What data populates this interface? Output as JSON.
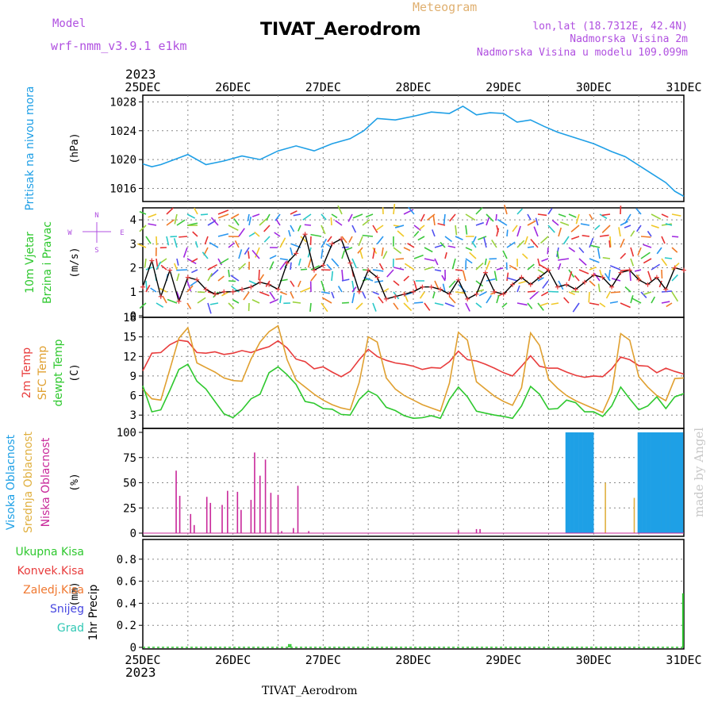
{
  "header": {
    "model_label": "Model",
    "model_name": "wrf-nmm_v3.9.1 e1km",
    "title": "TIVAT_Aerodrom",
    "subtitle": "Meteogram",
    "lonlat": "lon,lat (18.7312E, 42.4N)",
    "elev_real": "Nadmorska Visina 2m",
    "elev_model": "Nadmorska Visina u modelu 109.099m",
    "year_top": "2023",
    "year_bottom": "2023",
    "footer": "TIVAT_Aerodrom",
    "credit": "made by Angel"
  },
  "colors": {
    "pressure": "#1e9fe6",
    "temp2m": "#e83c3c",
    "sfctemp": "#e0a030",
    "dewpt": "#2ec82e",
    "visoka": "#1ea0e6",
    "srednja": "#e0b040",
    "niska": "#c8289a",
    "wind_line": "#000000",
    "wind_marker": "#e84040",
    "label_purple": "#b050e0",
    "credit": "#c8c8c8"
  },
  "chart_data": [
    {
      "type": "line",
      "panel": "pressure",
      "title": "",
      "ylabel_lines": [
        "Pritisak na nivou mora"
      ],
      "unit": "(hPa)",
      "x_ticks": [
        "25DEC",
        "26DEC",
        "27DEC",
        "28DEC",
        "29DEC",
        "30DEC",
        "31DEC"
      ],
      "ylim": [
        1014.4,
        1028.6
      ],
      "yticks": [
        "1016",
        "1020",
        "1024",
        "1028"
      ],
      "grid": true,
      "series": [
        {
          "color_key": "pressure",
          "x": [
            0,
            0.1,
            0.2,
            0.35,
            0.5,
            0.7,
            0.9,
            1.1,
            1.3,
            1.5,
            1.7,
            1.9,
            2.1,
            2.3,
            2.45,
            2.6,
            2.8,
            3.0,
            3.2,
            3.4,
            3.55,
            3.7,
            3.85,
            4.0,
            4.15,
            4.3,
            4.45,
            4.6,
            4.8,
            5.0,
            5.2,
            5.35,
            5.5,
            5.65,
            5.8,
            5.9,
            6.0
          ],
          "y": [
            1019.4,
            1019.0,
            1019.3,
            1020.0,
            1020.7,
            1019.3,
            1019.8,
            1020.5,
            1020.0,
            1021.2,
            1021.9,
            1021.2,
            1022.2,
            1022.9,
            1024.0,
            1025.7,
            1025.5,
            1026.0,
            1026.6,
            1026.4,
            1027.4,
            1026.2,
            1026.5,
            1026.4,
            1025.2,
            1025.5,
            1024.6,
            1023.8,
            1023.0,
            1022.2,
            1021.1,
            1020.4,
            1019.2,
            1018.0,
            1016.8,
            1015.6,
            1014.9
          ]
        }
      ]
    },
    {
      "type": "line",
      "panel": "wind",
      "title": "",
      "ylabel_lines": [
        "10m Vjetar",
        "Brzina i Pravac"
      ],
      "unit": "(m/s)",
      "compass": [
        "N",
        "W",
        "E",
        "S"
      ],
      "ylim": [
        0,
        4.5
      ],
      "yticks": [
        "0",
        "1",
        "2",
        "3",
        "4"
      ],
      "grid": true,
      "series": [
        {
          "color_key": "wind_line",
          "x": [
            0,
            0.1,
            0.2,
            0.3,
            0.4,
            0.5,
            0.6,
            0.7,
            0.8,
            0.9,
            1.0,
            1.1,
            1.2,
            1.3,
            1.4,
            1.5,
            1.6,
            1.7,
            1.8,
            1.9,
            2.0,
            2.1,
            2.2,
            2.3,
            2.4,
            2.5,
            2.6,
            2.7,
            2.8,
            2.9,
            3.0,
            3.1,
            3.2,
            3.3,
            3.4,
            3.5,
            3.6,
            3.7,
            3.8,
            3.9,
            4.0,
            4.1,
            4.2,
            4.3,
            4.4,
            4.5,
            4.6,
            4.7,
            4.8,
            4.9,
            5.0,
            5.1,
            5.2,
            5.3,
            5.4,
            5.5,
            5.6,
            5.7,
            5.8,
            5.9,
            6.0
          ],
          "y": [
            1.2,
            2.3,
            0.8,
            1.9,
            0.6,
            1.6,
            1.5,
            1.1,
            0.9,
            1.0,
            1.0,
            1.1,
            1.2,
            1.4,
            1.3,
            1.1,
            2.2,
            2.6,
            3.4,
            1.9,
            2.1,
            3.0,
            3.2,
            2.2,
            1.0,
            1.9,
            1.6,
            0.7,
            0.8,
            0.9,
            1.0,
            1.2,
            1.2,
            1.1,
            0.9,
            1.5,
            0.7,
            0.9,
            1.8,
            1.0,
            0.9,
            1.3,
            1.6,
            1.3,
            1.6,
            1.9,
            1.2,
            1.3,
            1.1,
            1.4,
            1.7,
            1.6,
            1.2,
            1.8,
            1.9,
            1.5,
            1.3,
            1.6,
            1.1,
            2.0,
            1.9
          ]
        }
      ]
    },
    {
      "type": "line",
      "panel": "temperature",
      "title": "",
      "ylabel_lines": [
        "2m Temp",
        "SFC Temp",
        "dewpt Temp"
      ],
      "unit": "(C)",
      "ylim": [
        1.2,
        18
      ],
      "yticks": [
        "3",
        "6",
        "9",
        "12",
        "15",
        "18"
      ],
      "grid": true,
      "series": [
        {
          "name": "2m Temp",
          "color_key": "temp2m",
          "x": [
            0,
            0.1,
            0.2,
            0.3,
            0.4,
            0.5,
            0.6,
            0.7,
            0.8,
            0.9,
            1.0,
            1.1,
            1.2,
            1.3,
            1.4,
            1.5,
            1.6,
            1.7,
            1.8,
            1.9,
            2.0,
            2.1,
            2.2,
            2.3,
            2.4,
            2.5,
            2.6,
            2.7,
            2.8,
            2.9,
            3.0,
            3.1,
            3.2,
            3.3,
            3.4,
            3.5,
            3.6,
            3.7,
            3.8,
            3.9,
            4.0,
            4.1,
            4.2,
            4.3,
            4.4,
            4.5,
            4.6,
            4.7,
            4.8,
            4.9,
            5.0,
            5.1,
            5.2,
            5.3,
            5.4,
            5.5,
            5.6,
            5.7,
            5.8,
            5.9,
            6.0
          ],
          "y": [
            9.8,
            12.5,
            12.6,
            13.8,
            14.5,
            14.3,
            12.6,
            12.5,
            12.7,
            12.3,
            12.5,
            12.9,
            12.6,
            13.1,
            13.5,
            14.4,
            13.3,
            11.6,
            11.2,
            10.1,
            10.4,
            9.6,
            8.9,
            9.7,
            11.5,
            13.1,
            12.0,
            11.4,
            11.0,
            10.8,
            10.5,
            10.0,
            10.3,
            10.2,
            11.2,
            12.8,
            11.5,
            11.3,
            10.8,
            10.2,
            9.5,
            9.0,
            10.5,
            12.1,
            10.5,
            10.2,
            10.2,
            9.6,
            9.1,
            8.8,
            9.0,
            8.9,
            10.1,
            11.9,
            11.5,
            10.6,
            10.5,
            9.5,
            10.2,
            9.7,
            9.3
          ]
        },
        {
          "name": "SFC Temp",
          "color_key": "sfctemp",
          "x": [
            0,
            0.1,
            0.2,
            0.3,
            0.4,
            0.5,
            0.6,
            0.7,
            0.8,
            0.9,
            1.0,
            1.1,
            1.2,
            1.3,
            1.4,
            1.5,
            1.6,
            1.7,
            1.8,
            1.9,
            2.0,
            2.1,
            2.2,
            2.3,
            2.4,
            2.5,
            2.6,
            2.7,
            2.8,
            2.9,
            3.0,
            3.1,
            3.2,
            3.3,
            3.4,
            3.5,
            3.6,
            3.7,
            3.8,
            3.9,
            4.0,
            4.1,
            4.2,
            4.3,
            4.4,
            4.5,
            4.6,
            4.7,
            4.8,
            4.9,
            5.0,
            5.1,
            5.2,
            5.3,
            5.4,
            5.5,
            5.6,
            5.7,
            5.8,
            5.9,
            6.0
          ],
          "y": [
            7.0,
            5.5,
            5.3,
            10.0,
            14.8,
            16.4,
            11.0,
            10.3,
            9.6,
            8.7,
            8.3,
            8.2,
            11.6,
            14.2,
            15.8,
            16.7,
            11.5,
            8.4,
            7.3,
            6.2,
            5.3,
            4.6,
            4.1,
            3.8,
            8.0,
            15.0,
            14.2,
            8.7,
            7.0,
            6.0,
            5.3,
            4.6,
            4.1,
            3.6,
            7.9,
            15.7,
            14.5,
            8.1,
            7.0,
            5.9,
            5.1,
            4.5,
            7.2,
            15.6,
            13.7,
            8.5,
            7.1,
            6.0,
            5.2,
            4.6,
            4.0,
            3.4,
            6.5,
            15.5,
            14.5,
            8.9,
            7.3,
            6.0,
            5.2,
            8.6,
            8.7
          ]
        },
        {
          "name": "dewpt Temp",
          "color_key": "dewpt",
          "x": [
            0,
            0.1,
            0.2,
            0.3,
            0.4,
            0.5,
            0.6,
            0.7,
            0.8,
            0.9,
            1.0,
            1.1,
            1.2,
            1.3,
            1.4,
            1.5,
            1.6,
            1.7,
            1.8,
            1.9,
            2.0,
            2.1,
            2.2,
            2.3,
            2.4,
            2.5,
            2.6,
            2.7,
            2.8,
            2.9,
            3.0,
            3.1,
            3.2,
            3.3,
            3.4,
            3.5,
            3.6,
            3.7,
            3.8,
            3.9,
            4.0,
            4.1,
            4.2,
            4.3,
            4.4,
            4.5,
            4.6,
            4.7,
            4.8,
            4.9,
            5.0,
            5.1,
            5.2,
            5.3,
            5.4,
            5.5,
            5.6,
            5.7,
            5.8,
            5.9,
            6.0
          ],
          "y": [
            7.5,
            3.5,
            3.8,
            6.8,
            10.0,
            10.8,
            8.2,
            7.0,
            5.1,
            3.2,
            2.6,
            3.8,
            5.5,
            6.2,
            9.5,
            10.4,
            9.2,
            7.7,
            5.1,
            4.8,
            4.0,
            3.9,
            3.1,
            3.0,
            5.4,
            6.7,
            6.0,
            4.2,
            3.7,
            2.9,
            2.5,
            2.6,
            2.9,
            2.5,
            5.4,
            7.3,
            5.8,
            3.6,
            3.3,
            3.0,
            2.8,
            2.5,
            4.4,
            7.4,
            6.2,
            3.9,
            4.0,
            5.3,
            4.9,
            3.5,
            3.5,
            2.8,
            4.4,
            7.3,
            5.5,
            3.8,
            4.4,
            5.8,
            4.0,
            5.8,
            6.3
          ]
        }
      ]
    },
    {
      "type": "bar",
      "panel": "clouds",
      "title": "",
      "ylabel_lines": [
        "Visoka Oblacnost",
        "Srednja Oblacnost",
        "Niska Oblacnost"
      ],
      "unit": "(%)",
      "ylim": [
        0,
        100
      ],
      "yticks": [
        "0",
        "25",
        "50",
        "75",
        "100"
      ],
      "grid": true,
      "series": [
        {
          "name": "Niska Oblacnost",
          "color_key": "niska",
          "x": [
            0.37,
            0.41,
            0.53,
            0.57,
            0.71,
            0.75,
            0.88,
            0.94,
            1.05,
            1.09,
            1.2,
            1.24,
            1.3,
            1.36,
            1.42,
            1.5,
            1.54,
            1.67,
            1.72,
            1.84,
            3.5,
            3.7,
            3.74,
            4.99
          ],
          "y": [
            62,
            37,
            19,
            8,
            36,
            30,
            28,
            42,
            41,
            23,
            33,
            80,
            57,
            73,
            40,
            38,
            2,
            5,
            47,
            2,
            3,
            4,
            4,
            3
          ]
        },
        {
          "name": "Srednja Oblacnost",
          "color_key": "srednja",
          "x": [
            5.13,
            5.45,
            5.55,
            5.6,
            5.65,
            5.7,
            5.75,
            5.8,
            5.85,
            5.9,
            5.95
          ],
          "y": [
            50,
            35,
            98,
            99,
            98,
            99,
            98,
            99,
            99,
            98,
            99
          ]
        },
        {
          "name": "Visoka Oblacnost",
          "color_key": "visoka",
          "x_start": 4.7,
          "x_end": 5.0,
          "x_start2": 5.5,
          "x_end2": 6.0,
          "y": 100
        }
      ]
    },
    {
      "type": "bar",
      "panel": "precip",
      "title": "",
      "ylabel_lines": [
        "1hr Precip"
      ],
      "unit": "(mm)",
      "legend": [
        "Ukupna Kisa",
        "Konvek.Kisa",
        "Zaledj.Kisa",
        "Snijeg",
        "Grad"
      ],
      "legend_colors": [
        "#2ec82e",
        "#e83c3c",
        "#f07830",
        "#4646e0",
        "#30c8b4"
      ],
      "ylim": [
        0,
        0.95
      ],
      "yticks": [
        "0",
        "0.2",
        "0.4",
        "0.6",
        "0.8"
      ],
      "grid": true,
      "series": [
        {
          "name": "Ukupna Kisa",
          "color_key": "dewpt",
          "x": [
            1.62,
            1.64,
            5.99
          ],
          "y": [
            0.03,
            0.03,
            0.49
          ]
        }
      ]
    }
  ]
}
